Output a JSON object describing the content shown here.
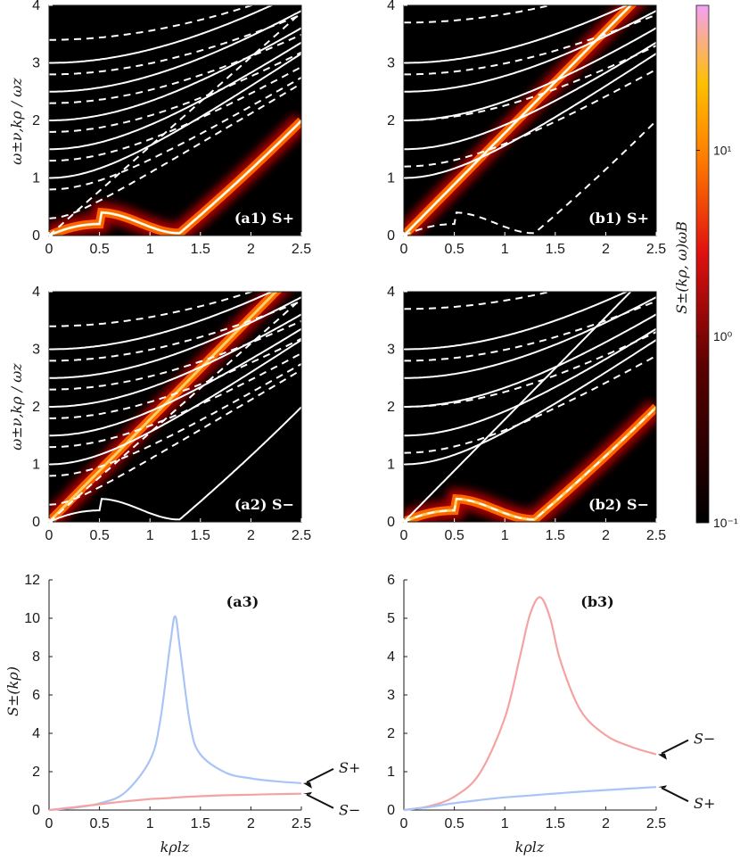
{
  "colors": {
    "background": "#000000",
    "dispersion": "#ffffff",
    "s_plus": "#a9c4f5",
    "s_minus": "#f4a3a3",
    "text": "#1a1a1a"
  },
  "labels": {
    "y_top": "ω±ν,kρ / ωz",
    "y_bottom": "S±(kρ)",
    "x_bottom": "kρlz",
    "colorbar": "S±(kρ, ω)ωB"
  },
  "colorbar": {
    "scale": "log",
    "range": [
      0.1,
      60
    ],
    "tick_values": [
      0.1,
      1,
      10
    ],
    "tick_labels": [
      "10⁻¹",
      "10⁰",
      "10¹"
    ]
  },
  "chart_data": [
    {
      "id": "a1",
      "type": "heatmap",
      "title": "(a1) S+",
      "x_ticks": [
        "0",
        "0.5",
        "1",
        "1.5",
        "2",
        "2.5"
      ],
      "y_ticks": [
        "0",
        "1",
        "2",
        "3",
        "4"
      ],
      "xlim": [
        0,
        2.5
      ],
      "ylim": [
        0,
        4
      ],
      "ylabel": "ω±ν,kρ / ωz",
      "highlight": "roton",
      "solid_offsets": [
        1,
        1.5,
        2,
        2.5,
        3
      ],
      "dashed_offsets": [
        0.3,
        0.8,
        1.3,
        1.8,
        2.3,
        2.8,
        3.4
      ]
    },
    {
      "id": "b1",
      "type": "heatmap",
      "title": "(b1) S+",
      "x_ticks": [
        "0",
        "0.5",
        "1",
        "1.5",
        "2",
        "2.5"
      ],
      "y_ticks": [
        "0",
        "1",
        "2",
        "3",
        "4"
      ],
      "xlim": [
        0,
        2.5
      ],
      "ylim": [
        0,
        4
      ],
      "ylabel": "",
      "highlight": "linear",
      "solid_offsets": [
        1,
        1.5,
        2,
        2.5,
        3
      ],
      "dashed_offsets": [
        1.2,
        2.0,
        2.8,
        3.7
      ]
    },
    {
      "id": "a2",
      "type": "heatmap",
      "title": "(a2) S−",
      "x_ticks": [
        "0",
        "0.5",
        "1",
        "1.5",
        "2",
        "2.5"
      ],
      "y_ticks": [
        "0",
        "1",
        "2",
        "3",
        "4"
      ],
      "xlim": [
        0,
        2.5
      ],
      "ylim": [
        0,
        4
      ],
      "ylabel": "ω±ν,kρ / ωz",
      "highlight": "linear",
      "solid_offsets": [
        1,
        1.5,
        2,
        2.5,
        3
      ],
      "dashed_offsets": [
        0.3,
        0.8,
        1.3,
        1.8,
        2.3,
        2.8,
        3.4
      ]
    },
    {
      "id": "b2",
      "type": "heatmap",
      "title": "(b2) S−",
      "x_ticks": [
        "0",
        "0.5",
        "1",
        "1.5",
        "2",
        "2.5"
      ],
      "y_ticks": [
        "0",
        "1",
        "2",
        "3",
        "4"
      ],
      "xlim": [
        0,
        2.5
      ],
      "ylim": [
        0,
        4
      ],
      "ylabel": "",
      "highlight": "roton",
      "solid_offsets": [
        1,
        1.5,
        2,
        2.5,
        3
      ],
      "dashed_offsets": [
        1.2,
        2.0,
        2.8,
        3.7
      ]
    },
    {
      "id": "a3",
      "type": "line",
      "title": "(a3)",
      "xlabel": "kρlz",
      "ylabel": "S±(kρ)",
      "xlim": [
        0,
        2.5
      ],
      "ylim": [
        0,
        12
      ],
      "x_ticks": [
        "0",
        "0.5",
        "1",
        "1.5",
        "2",
        "2.5"
      ],
      "y_ticks": [
        "0",
        "2",
        "4",
        "6",
        "8",
        "10",
        "12"
      ],
      "x": [
        0,
        0.25,
        0.5,
        0.75,
        1.0,
        1.1,
        1.2,
        1.25,
        1.3,
        1.4,
        1.5,
        1.75,
        2.0,
        2.25,
        2.5
      ],
      "series": [
        {
          "name": "S+",
          "values": [
            0,
            0.12,
            0.35,
            0.9,
            2.6,
            4.6,
            8.6,
            10.1,
            8.3,
            4.4,
            2.9,
            1.95,
            1.65,
            1.5,
            1.4
          ]
        },
        {
          "name": "S−",
          "values": [
            0,
            0.15,
            0.3,
            0.45,
            0.57,
            0.6,
            0.63,
            0.65,
            0.67,
            0.7,
            0.72,
            0.77,
            0.8,
            0.83,
            0.85
          ]
        }
      ],
      "annotations": [
        "S+",
        "S−"
      ]
    },
    {
      "id": "b3",
      "type": "line",
      "title": "(b3)",
      "xlabel": "kρlz",
      "ylabel": "",
      "xlim": [
        0,
        2.5
      ],
      "ylim": [
        0,
        6
      ],
      "x_ticks": [
        "0",
        "0.5",
        "1",
        "1.5",
        "2",
        "2.5"
      ],
      "y_ticks": [
        "0",
        "1",
        "2",
        "3",
        "4",
        "5",
        "6"
      ],
      "x": [
        0,
        0.25,
        0.5,
        0.75,
        1.0,
        1.15,
        1.25,
        1.35,
        1.45,
        1.55,
        1.75,
        2.0,
        2.25,
        2.5
      ],
      "series": [
        {
          "name": "S−",
          "values": [
            0,
            0.1,
            0.35,
            0.95,
            2.4,
            4.0,
            5.1,
            5.55,
            5.0,
            3.9,
            2.6,
            1.95,
            1.65,
            1.45
          ]
        },
        {
          "name": "S+",
          "values": [
            0,
            0.08,
            0.18,
            0.26,
            0.33,
            0.36,
            0.38,
            0.4,
            0.42,
            0.44,
            0.48,
            0.52,
            0.56,
            0.6
          ]
        }
      ],
      "annotations": [
        "S−",
        "S+"
      ]
    }
  ]
}
